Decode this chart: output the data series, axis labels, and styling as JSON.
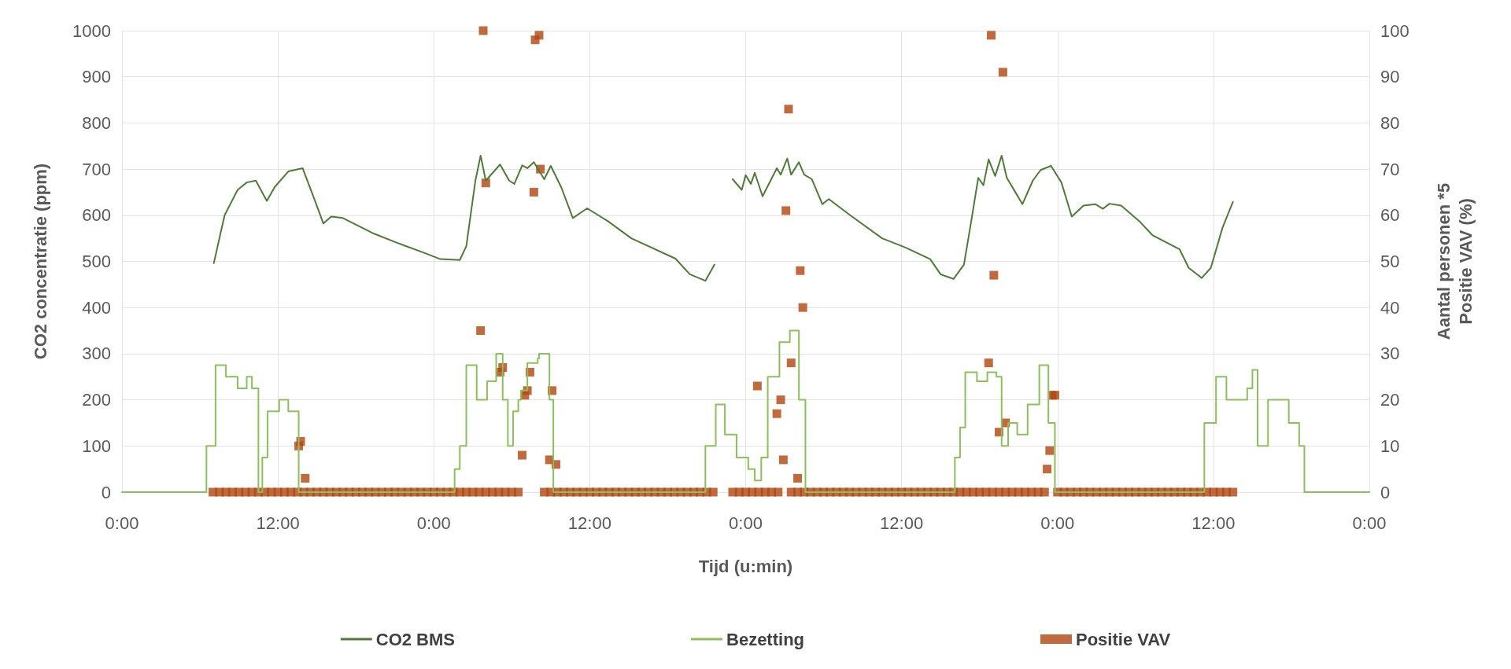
{
  "chart_data": {
    "type": "line",
    "xlabel": "Tijd (u:min)",
    "ylabel": "CO2 concentratie (ppm)",
    "y2label": "Aantal personen *5\nPositie VAV (%)",
    "xlim": [
      "--01-01T00:00",
      "--01-05T00:00"
    ],
    "xticks": [
      {
        "value": "--01-01T00:00",
        "label": "0:00"
      },
      {
        "value": "--01-01T12:00",
        "label": "12:00"
      },
      {
        "value": "--01-02T00:00",
        "label": "0:00"
      },
      {
        "value": "--01-02T12:00",
        "label": "12:00"
      },
      {
        "value": "--01-03T00:00",
        "label": "0:00"
      },
      {
        "value": "--01-03T12:00",
        "label": "12:00"
      },
      {
        "value": "--01-04T00:00",
        "label": "0:00"
      },
      {
        "value": "--01-04T12:00",
        "label": "12:00"
      },
      {
        "value": "--01-05T00:00",
        "label": "0:00"
      }
    ],
    "ylim": [
      0,
      1000
    ],
    "yticks": [
      0,
      100,
      200,
      300,
      400,
      500,
      600,
      700,
      800,
      900,
      1000
    ],
    "y2lim": [
      0,
      100
    ],
    "y2ticks": [
      0,
      10,
      20,
      30,
      40,
      50,
      60,
      70,
      80,
      90,
      100
    ],
    "grid": true,
    "legend": "bottom",
    "series": [
      {
        "name": "CO2 BMS",
        "marker": "none",
        "color": "#4f7a3a",
        "x": [
          "--01-01T07:04",
          "--01-01T07:54",
          "--01-01T08:54",
          "--01-01T09:36",
          "--01-01T10:18",
          "--01-01T11:09",
          "--01-01T11:45",
          "--01-01T12:48",
          "--01-01T13:54",
          "--01-01T14:54",
          "--01-01T15:30",
          "--01-01T16:06",
          "--01-01T17:00",
          "--01-01T19:24",
          "--01-01T21:06",
          "--01-01T23:18",
          "--01-02T00:30",
          "--01-02T02:00",
          "--01-02T02:30",
          "--01-02T03:12",
          "--01-02T03:36",
          "--01-02T04:00",
          "--01-02T05:06",
          "--01-02T05:48",
          "--01-02T06:12",
          "--01-02T06:48",
          "--01-02T07:12",
          "--01-02T07:42",
          "--01-02T08:30",
          "--01-02T09:00",
          "--01-02T09:48",
          "--01-02T10:42",
          "--01-02T11:48",
          "--01-02T13:24",
          "--01-02T15:12",
          "--01-02T18:36",
          "--01-02T19:42",
          "--01-02T20:54",
          "--01-02T21:36",
          "--01-02T22:18",
          "--01-02T23:00",
          "--01-02T23:42",
          "--01-03T00:00",
          "--01-03T00:24",
          "--01-03T00:42",
          "--01-03T01:18",
          "--01-03T02:24",
          "--01-03T02:42",
          "--01-03T03:12",
          "--01-03T03:30",
          "--01-03T04:06",
          "--01-03T04:30",
          "--01-03T05:06",
          "--01-03T05:54",
          "--01-03T06:24",
          "--01-03T08:00",
          "--01-03T10:30",
          "--01-03T12:18",
          "--01-03T14:12",
          "--01-03T15:00",
          "--01-03T16:00",
          "--01-03T16:48",
          "--01-03T17:24",
          "--01-03T17:54",
          "--01-03T18:18",
          "--01-03T18:42",
          "--01-03T19:12",
          "--01-03T19:42",
          "--01-03T20:06",
          "--01-03T20:48",
          "--01-03T21:18",
          "--01-03T22:06",
          "--01-03T22:42",
          "--01-03T23:30",
          "--01-04T00:18",
          "--01-04T01:06",
          "--01-04T02:00",
          "--01-04T02:54",
          "--01-04T03:30",
          "--01-04T04:00",
          "--01-04T04:54",
          "--01-04T06:18",
          "--01-04T07:18",
          "--01-04T09:24",
          "--01-04T10:06",
          "--01-04T11:06",
          "--01-04T11:48",
          "--01-04T12:42",
          "--01-04T13:30"
        ],
        "values": [
          496,
          600,
          655,
          671,
          675,
          631,
          661,
          695,
          702,
          628,
          582,
          597,
          594,
          560,
          541,
          518,
          505,
          503,
          533,
          675,
          729,
          675,
          710,
          675,
          668,
          708,
          702,
          715,
          678,
          707,
          661,
          594,
          615,
          587,
          550,
          506,
          472,
          458,
          493,
          null,
          678,
          655,
          687,
          668,
          692,
          641,
          702,
          688,
          723,
          688,
          715,
          688,
          678,
          624,
          635,
          601,
          550,
          530,
          505,
          472,
          462,
          493,
          594,
          681,
          665,
          721,
          685,
          729,
          681,
          648,
          624,
          675,
          698,
          707,
          671,
          597,
          621,
          624,
          614,
          625,
          621,
          587,
          557,
          526,
          486,
          464,
          486,
          573,
          629
        ]
      },
      {
        "name": "Bezetting",
        "type": "step",
        "axis": "y2",
        "marker": "none",
        "color": "#8cbf5e",
        "x": [
          "--01-01T00:00",
          "--01-01T06:30",
          "--01-01T07:12",
          "--01-01T08:00",
          "--01-01T08:54",
          "--01-01T09:36",
          "--01-01T10:00",
          "--01-01T10:30",
          "--01-01T10:48",
          "--01-01T11:12",
          "--01-01T12:06",
          "--01-01T12:48",
          "--01-01T13:36",
          "--01-02T01:36",
          "--01-02T02:00",
          "--01-02T02:30",
          "--01-02T03:18",
          "--01-02T04:06",
          "--01-02T04:48",
          "--01-02T05:18",
          "--01-02T05:42",
          "--01-02T06:06",
          "--01-02T06:30",
          "--01-02T06:42",
          "--01-02T07:12",
          "--01-02T08:00",
          "--01-02T08:06",
          "--01-02T08:54",
          "--01-02T09:12",
          "--01-02T20:54",
          "--01-02T21:42",
          "--01-02T22:24",
          "--01-02T23:18",
          "--01-03T00:12",
          "--01-03T00:42",
          "--01-03T01:12",
          "--01-03T01:42",
          "--01-03T02:36",
          "--01-03T03:24",
          "--01-03T04:06",
          "--01-03T04:36",
          "--01-03T16:06",
          "--01-03T16:30",
          "--01-03T16:54",
          "--01-03T17:48",
          "--01-03T18:36",
          "--01-03T19:18",
          "--01-03T19:42",
          "--01-03T20:12",
          "--01-03T20:54",
          "--01-03T21:42",
          "--01-03T22:36",
          "--01-03T23:18",
          "--01-03T23:48",
          "--01-04T11:18",
          "--01-04T12:12",
          "--01-04T13:00",
          "--01-04T14:36",
          "--01-04T15:00",
          "--01-04T15:24",
          "--01-04T16:12",
          "--01-04T17:48",
          "--01-04T18:36",
          "--01-04T19:00",
          "--01-05T00:00"
        ],
        "values": [
          0,
          10,
          27.5,
          25,
          22.5,
          25,
          22.5,
          0,
          7.5,
          17.5,
          20,
          17.5,
          0,
          5,
          10,
          27.5,
          20,
          24,
          30,
          20,
          10,
          17.5,
          20,
          22,
          28,
          29,
          30,
          20,
          0,
          10,
          19,
          12.5,
          7.5,
          5,
          2.5,
          7.5,
          25,
          32.5,
          35,
          20,
          0,
          7.5,
          14,
          26,
          24,
          26,
          25,
          10,
          15,
          12.5,
          19,
          27.5,
          15,
          0,
          15,
          25,
          20,
          22.5,
          26.5,
          10,
          20,
          15,
          10,
          0,
          0
        ]
      },
      {
        "name": "Positie VAV",
        "type": "scatter",
        "axis": "y2",
        "marker": "square",
        "color": "#b0460f",
        "x": [
          "--01-01T07:00",
          "--01-01T07:30",
          "--01-01T08:00",
          "--01-01T08:30",
          "--01-01T09:00",
          "--01-01T09:30",
          "--01-01T10:00",
          "--01-01T10:30",
          "--01-01T11:00",
          "--01-01T11:30",
          "--01-01T12:00",
          "--01-01T12:30",
          "--01-01T13:00",
          "--01-01T13:30",
          "--01-01T14:00",
          "--01-01T14:30",
          "--01-01T15:00",
          "--01-01T15:30",
          "--01-01T16:00",
          "--01-01T16:30",
          "--01-01T17:00",
          "--01-01T17:30",
          "--01-01T18:00",
          "--01-01T18:30",
          "--01-01T19:00",
          "--01-01T19:30",
          "--01-01T20:00",
          "--01-01T20:30",
          "--01-01T21:00",
          "--01-01T21:30",
          "--01-01T22:00",
          "--01-01T22:30",
          "--01-01T23:00",
          "--01-01T23:30",
          "--01-02T00:00",
          "--01-02T00:30",
          "--01-02T01:00",
          "--01-02T01:30",
          "--01-02T02:00",
          "--01-02T02:30",
          "--01-02T03:00",
          "--01-02T03:30",
          "--01-02T04:00",
          "--01-02T04:30",
          "--01-02T05:00",
          "--01-02T05:30",
          "--01-02T06:00",
          "--01-02T06:30",
          "--01-02T08:30",
          "--01-02T09:00",
          "--01-02T09:30",
          "--01-02T10:00",
          "--01-02T10:30",
          "--01-02T11:00",
          "--01-02T11:30",
          "--01-02T12:00",
          "--01-02T12:30",
          "--01-02T13:00",
          "--01-02T13:30",
          "--01-02T14:00",
          "--01-02T14:30",
          "--01-02T15:00",
          "--01-02T15:30",
          "--01-02T16:00",
          "--01-02T16:30",
          "--01-02T17:00",
          "--01-02T17:30",
          "--01-02T18:00",
          "--01-02T18:30",
          "--01-02T19:00",
          "--01-02T19:30",
          "--01-02T20:00",
          "--01-02T20:30",
          "--01-02T21:00",
          "--01-02T21:30",
          "--01-02T23:00",
          "--01-02T23:30",
          "--01-03T00:00",
          "--01-03T00:30",
          "--01-03T01:00",
          "--01-03T01:30",
          "--01-03T02:00",
          "--01-03T02:30",
          "--01-03T03:30",
          "--01-03T04:00",
          "--01-03T04:30",
          "--01-03T05:00",
          "--01-03T05:30",
          "--01-03T06:00",
          "--01-03T06:30",
          "--01-03T07:00",
          "--01-03T07:30",
          "--01-03T08:00",
          "--01-03T08:30",
          "--01-03T09:00",
          "--01-03T09:30",
          "--01-03T10:00",
          "--01-03T10:30",
          "--01-03T11:00",
          "--01-03T11:30",
          "--01-03T12:00",
          "--01-03T12:30",
          "--01-03T13:00",
          "--01-03T13:30",
          "--01-03T14:00",
          "--01-03T14:30",
          "--01-03T15:00",
          "--01-03T15:30",
          "--01-03T16:00",
          "--01-03T16:30",
          "--01-03T17:00",
          "--01-03T17:30",
          "--01-03T18:00",
          "--01-03T18:30",
          "--01-03T19:00",
          "--01-03T19:30",
          "--01-03T20:00",
          "--01-03T20:30",
          "--01-03T21:00",
          "--01-03T21:30",
          "--01-03T22:00",
          "--01-03T22:30",
          "--01-03T23:00",
          "--01-04T00:00",
          "--01-04T00:30",
          "--01-04T01:00",
          "--01-04T01:30",
          "--01-04T02:00",
          "--01-04T02:30",
          "--01-04T03:00",
          "--01-04T03:30",
          "--01-04T04:00",
          "--01-04T04:30",
          "--01-04T05:00",
          "--01-04T05:30",
          "--01-04T06:00",
          "--01-04T06:30",
          "--01-04T07:00",
          "--01-04T07:30",
          "--01-04T08:00",
          "--01-04T08:30",
          "--01-04T09:00",
          "--01-04T09:30",
          "--01-04T10:00",
          "--01-04T10:30",
          "--01-04T11:00",
          "--01-04T11:30",
          "--01-04T12:00",
          "--01-04T12:30",
          "--01-04T13:00",
          "--01-04T13:30",
          "--01-01T13:36",
          "--01-01T13:45",
          "--01-01T14:06",
          "--01-02T03:48",
          "--01-02T07:48",
          "--01-02T08:06",
          "--01-02T04:00",
          "--01-02T08:12",
          "--01-02T07:42",
          "--01-02T03:36",
          "--01-02T05:06",
          "--01-02T05:18",
          "--01-02T07:24",
          "--01-02T07:00",
          "--01-02T07:12",
          "--01-02T09:06",
          "--01-02T06:48",
          "--01-02T08:54",
          "--01-02T09:24",
          "--01-03T18:54",
          "--01-03T19:48",
          "--01-03T03:18",
          "--01-03T03:06",
          "--01-03T04:12",
          "--01-03T04:24",
          "--01-03T19:06",
          "--01-03T03:30",
          "--01-03T18:42",
          "--01-03T00:54",
          "--01-03T02:42",
          "--01-03T02:24",
          "--01-03T02:54",
          "--01-03T04:00",
          "--01-03T23:36",
          "--01-03T23:48",
          "--01-03T20:00",
          "--01-03T19:30",
          "--01-03T23:24",
          "--01-03T23:12"
        ],
        "values": [
          0,
          0,
          0,
          0,
          0,
          0,
          0,
          0,
          0,
          0,
          0,
          0,
          0,
          0,
          0,
          0,
          0,
          0,
          0,
          0,
          0,
          0,
          0,
          0,
          0,
          0,
          0,
          0,
          0,
          0,
          0,
          0,
          0,
          0,
          0,
          0,
          0,
          0,
          0,
          0,
          0,
          0,
          0,
          0,
          0,
          0,
          0,
          0,
          0,
          0,
          0,
          0,
          0,
          0,
          0,
          0,
          0,
          0,
          0,
          0,
          0,
          0,
          0,
          0,
          0,
          0,
          0,
          0,
          0,
          0,
          0,
          0,
          0,
          0,
          0,
          0,
          0,
          0,
          0,
          0,
          0,
          0,
          0,
          0,
          0,
          0,
          0,
          0,
          0,
          0,
          0,
          0,
          0,
          0,
          0,
          0,
          0,
          0,
          0,
          0,
          0,
          0,
          0,
          0,
          0,
          0,
          0,
          0,
          0,
          0,
          0,
          0,
          0,
          0,
          0,
          0,
          0,
          0,
          0,
          0,
          0,
          0,
          0,
          0,
          0,
          0,
          0,
          0,
          0,
          0,
          0,
          0,
          0,
          0,
          0,
          0,
          0,
          0,
          0,
          0,
          0,
          0,
          0,
          0,
          0,
          0,
          0,
          0,
          0,
          0,
          0,
          10,
          11,
          3,
          100,
          98,
          99,
          67,
          70,
          65,
          35,
          26,
          27,
          26,
          21,
          22,
          22,
          8,
          7,
          6,
          99,
          91,
          83,
          61,
          48,
          40,
          47,
          28,
          28,
          23,
          20,
          17,
          7,
          3,
          21,
          21,
          15,
          13,
          9,
          5
        ]
      }
    ]
  }
}
